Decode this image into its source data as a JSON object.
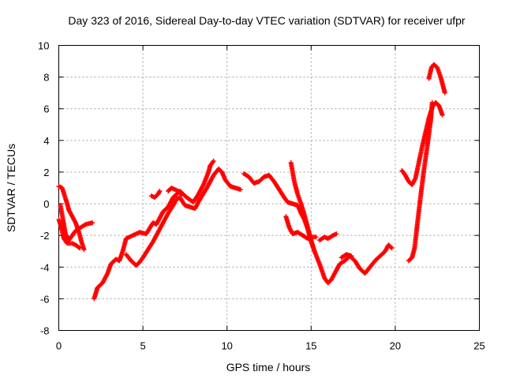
{
  "chart_data": {
    "type": "scatter",
    "title": "Day 323 of 2016, Sidereal Day-to-day VTEC variation (SDTVAR) for receiver ufpr",
    "xlabel": "GPS time / hours",
    "ylabel": "SDTVAR / TECUs",
    "xlim": [
      0,
      25
    ],
    "ylim": [
      -8,
      10
    ],
    "xticks": [
      0,
      5,
      10,
      15,
      20,
      25
    ],
    "yticks": [
      -8,
      -6,
      -4,
      -2,
      0,
      2,
      4,
      6,
      8,
      10
    ],
    "grid": true,
    "marker": "+",
    "color": "#ff0000",
    "series": [
      {
        "name": "s1",
        "points": [
          [
            0.0,
            1.1
          ],
          [
            0.2,
            1.0
          ],
          [
            0.35,
            0.5
          ],
          [
            0.5,
            0.0
          ],
          [
            0.6,
            -0.4
          ],
          [
            0.8,
            -0.8
          ],
          [
            1.0,
            -1.2
          ],
          [
            1.2,
            -1.8
          ],
          [
            1.35,
            -2.4
          ],
          [
            1.5,
            -2.9
          ]
        ]
      },
      {
        "name": "s2",
        "points": [
          [
            0.0,
            -1.0
          ],
          [
            0.15,
            -1.5
          ],
          [
            0.3,
            -2.2
          ],
          [
            0.5,
            -2.5
          ],
          [
            0.8,
            -2.5
          ],
          [
            1.0,
            -2.6
          ],
          [
            1.25,
            -2.8
          ]
        ]
      },
      {
        "name": "s3",
        "points": [
          [
            0.1,
            -0.1
          ],
          [
            0.25,
            -1.0
          ],
          [
            0.4,
            -1.9
          ],
          [
            0.6,
            -2.3
          ],
          [
            0.8,
            -2.0
          ],
          [
            1.0,
            -1.7
          ],
          [
            1.3,
            -1.5
          ],
          [
            1.6,
            -1.3
          ],
          [
            2.0,
            -1.2
          ]
        ]
      },
      {
        "name": "s4",
        "points": [
          [
            2.1,
            -6.0
          ],
          [
            2.3,
            -5.3
          ],
          [
            2.6,
            -5.0
          ],
          [
            2.9,
            -4.4
          ],
          [
            3.1,
            -3.8
          ],
          [
            3.4,
            -3.5
          ],
          [
            3.6,
            -3.6
          ],
          [
            3.8,
            -3.0
          ],
          [
            4.0,
            -2.2
          ],
          [
            4.4,
            -2.0
          ],
          [
            4.8,
            -1.8
          ],
          [
            5.2,
            -1.9
          ],
          [
            5.6,
            -1.2
          ],
          [
            5.8,
            -1.3
          ],
          [
            6.2,
            -0.5
          ],
          [
            6.5,
            -0.2
          ],
          [
            6.8,
            0.4
          ],
          [
            7.2,
            0.8
          ],
          [
            7.6,
            0.4
          ],
          [
            8.0,
            0.1
          ],
          [
            8.3,
            0.6
          ],
          [
            8.6,
            1.2
          ],
          [
            8.9,
            2.0
          ],
          [
            9.0,
            2.4
          ],
          [
            9.2,
            2.7
          ]
        ]
      },
      {
        "name": "s5",
        "points": [
          [
            4.0,
            -3.2
          ],
          [
            4.3,
            -3.6
          ],
          [
            4.6,
            -3.9
          ],
          [
            4.8,
            -3.7
          ],
          [
            5.0,
            -3.4
          ],
          [
            5.3,
            -2.9
          ],
          [
            5.6,
            -2.4
          ],
          [
            5.9,
            -1.8
          ],
          [
            6.2,
            -1.2
          ],
          [
            6.5,
            -0.6
          ],
          [
            6.8,
            -0.1
          ],
          [
            7.0,
            0.3
          ],
          [
            7.2,
            0.4
          ],
          [
            7.5,
            -0.1
          ],
          [
            7.8,
            -0.2
          ],
          [
            8.1,
            -0.3
          ],
          [
            8.4,
            0.3
          ],
          [
            8.8,
            1.0
          ],
          [
            9.2,
            1.8
          ],
          [
            9.5,
            2.2
          ],
          [
            9.7,
            2.0
          ],
          [
            9.9,
            1.5
          ],
          [
            10.2,
            1.1
          ],
          [
            10.5,
            1.0
          ],
          [
            10.8,
            0.9
          ]
        ]
      },
      {
        "name": "s6",
        "points": [
          [
            5.5,
            0.5
          ],
          [
            5.7,
            0.4
          ],
          [
            5.9,
            0.6
          ],
          [
            6.0,
            0.8
          ]
        ]
      },
      {
        "name": "s7",
        "points": [
          [
            6.5,
            0.8
          ],
          [
            6.7,
            1.0
          ],
          [
            6.9,
            0.9
          ],
          [
            7.1,
            0.8
          ],
          [
            7.3,
            0.6
          ]
        ]
      },
      {
        "name": "s8",
        "points": [
          [
            11.0,
            1.9
          ],
          [
            11.3,
            1.7
          ],
          [
            11.6,
            1.3
          ],
          [
            11.9,
            1.4
          ],
          [
            12.2,
            1.7
          ],
          [
            12.5,
            1.8
          ],
          [
            12.8,
            1.4
          ],
          [
            13.1,
            0.9
          ],
          [
            13.4,
            0.4
          ],
          [
            13.6,
            0.1
          ],
          [
            13.9,
            0.0
          ],
          [
            14.2,
            -0.1
          ],
          [
            14.4,
            -0.6
          ],
          [
            14.6,
            -1.0
          ],
          [
            14.8,
            -1.6
          ],
          [
            15.0,
            -2.4
          ],
          [
            15.2,
            -3.0
          ],
          [
            15.5,
            -3.8
          ],
          [
            15.8,
            -4.7
          ],
          [
            16.0,
            -5.0
          ],
          [
            16.2,
            -4.8
          ],
          [
            16.4,
            -4.4
          ],
          [
            16.7,
            -3.8
          ],
          [
            17.0,
            -3.6
          ],
          [
            17.3,
            -3.3
          ],
          [
            17.6,
            -3.6
          ],
          [
            17.9,
            -4.1
          ],
          [
            18.2,
            -4.4
          ],
          [
            18.5,
            -4.0
          ],
          [
            18.8,
            -3.6
          ],
          [
            19.1,
            -3.3
          ],
          [
            19.4,
            -3.0
          ],
          [
            19.6,
            -2.6
          ],
          [
            19.8,
            -2.8
          ]
        ]
      },
      {
        "name": "s9",
        "points": [
          [
            13.5,
            -0.8
          ],
          [
            13.7,
            -1.5
          ],
          [
            13.9,
            -1.9
          ],
          [
            14.2,
            -1.8
          ],
          [
            14.5,
            -2.0
          ],
          [
            14.8,
            -2.2
          ],
          [
            15.0,
            -2.1
          ],
          [
            15.3,
            -2.1
          ]
        ]
      },
      {
        "name": "s10",
        "points": [
          [
            13.8,
            2.6
          ],
          [
            13.9,
            2.0
          ],
          [
            14.0,
            1.4
          ],
          [
            14.2,
            0.6
          ],
          [
            14.4,
            0.0
          ],
          [
            14.6,
            -0.7
          ],
          [
            14.8,
            -1.5
          ],
          [
            15.0,
            -2.3
          ],
          [
            15.2,
            -3.0
          ]
        ]
      },
      {
        "name": "s11",
        "points": [
          [
            15.5,
            -2.3
          ],
          [
            15.8,
            -2.1
          ],
          [
            16.0,
            -2.2
          ],
          [
            16.3,
            -2.0
          ],
          [
            16.5,
            -1.9
          ]
        ]
      },
      {
        "name": "s12",
        "points": [
          [
            16.8,
            -3.4
          ],
          [
            17.1,
            -3.2
          ],
          [
            17.4,
            -3.3
          ]
        ]
      },
      {
        "name": "s13",
        "points": [
          [
            20.4,
            2.1
          ],
          [
            20.6,
            1.8
          ],
          [
            20.8,
            1.4
          ],
          [
            21.0,
            1.2
          ],
          [
            21.2,
            1.6
          ],
          [
            21.4,
            2.6
          ],
          [
            21.6,
            3.6
          ],
          [
            21.8,
            4.5
          ],
          [
            22.0,
            5.4
          ],
          [
            22.2,
            6.1
          ],
          [
            22.4,
            6.4
          ],
          [
            22.6,
            6.2
          ],
          [
            22.8,
            5.6
          ]
        ]
      },
      {
        "name": "s14",
        "points": [
          [
            20.8,
            -3.6
          ],
          [
            21.0,
            -3.4
          ],
          [
            21.15,
            -2.8
          ],
          [
            21.3,
            -1.4
          ],
          [
            21.5,
            0.4
          ],
          [
            21.7,
            2.1
          ],
          [
            21.9,
            3.6
          ],
          [
            22.1,
            5.2
          ],
          [
            22.2,
            6.4
          ]
        ]
      },
      {
        "name": "s15",
        "points": [
          [
            22.0,
            7.9
          ],
          [
            22.15,
            8.6
          ],
          [
            22.3,
            8.8
          ],
          [
            22.5,
            8.6
          ],
          [
            22.7,
            8.0
          ],
          [
            22.85,
            7.4
          ],
          [
            22.95,
            7.0
          ]
        ]
      }
    ]
  }
}
